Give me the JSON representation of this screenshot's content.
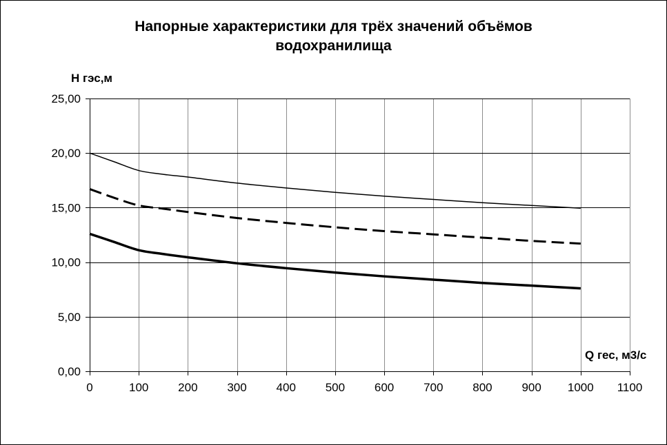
{
  "chart_data": {
    "type": "line",
    "title_line1": "Напорные характеристики для трёх значений объёмов",
    "title_line2": "водохранилища",
    "ylabel": "Н гэс,м",
    "xlabel": "Q гес, м3/с",
    "xlim": [
      0,
      1100
    ],
    "ylim": [
      0,
      25
    ],
    "x_ticks": [
      "0",
      "100",
      "200",
      "300",
      "400",
      "500",
      "600",
      "700",
      "800",
      "900",
      "1000",
      "1100"
    ],
    "y_ticks": [
      "0,00",
      "5,00",
      "10,00",
      "15,00",
      "20,00",
      "25,00"
    ],
    "grid": true,
    "series": [
      {
        "style": "thin-solid",
        "x": [
          0,
          50,
          100,
          150,
          200,
          300,
          400,
          500,
          600,
          700,
          800,
          900,
          1000
        ],
        "y": [
          20.0,
          19.2,
          18.4,
          18.05,
          17.8,
          17.25,
          16.8,
          16.4,
          16.05,
          15.75,
          15.45,
          15.2,
          14.95
        ]
      },
      {
        "style": "dashed",
        "x": [
          0,
          50,
          100,
          150,
          200,
          300,
          400,
          500,
          600,
          700,
          800,
          900,
          1000
        ],
        "y": [
          16.7,
          15.9,
          15.2,
          14.9,
          14.6,
          14.05,
          13.6,
          13.2,
          12.85,
          12.55,
          12.25,
          11.95,
          11.7
        ]
      },
      {
        "style": "thick-solid",
        "x": [
          0,
          50,
          100,
          150,
          200,
          300,
          400,
          500,
          600,
          700,
          800,
          900,
          1000
        ],
        "y": [
          12.6,
          11.85,
          11.1,
          10.75,
          10.45,
          9.9,
          9.45,
          9.05,
          8.7,
          8.4,
          8.1,
          7.85,
          7.6
        ]
      }
    ]
  }
}
